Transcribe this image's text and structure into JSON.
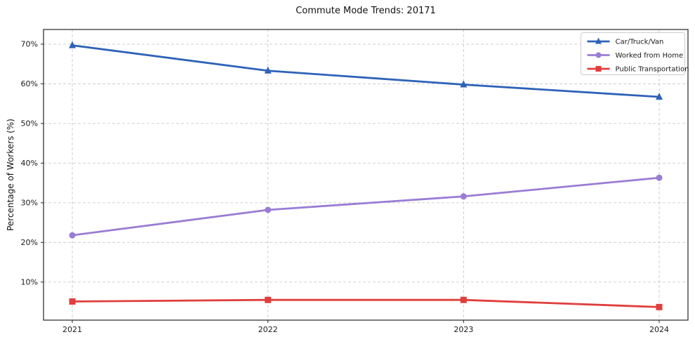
{
  "chart_data": {
    "type": "line",
    "title": "Commute Mode Trends: 20171",
    "xlabel": "",
    "ylabel": "Percentage of Workers (%)",
    "categories": [
      "2021",
      "2022",
      "2023",
      "2024"
    ],
    "series": [
      {
        "name": "Car/Truck/Van",
        "color": "#2e62b8",
        "marker": "triangle",
        "values": [
          69.7,
          63.3,
          59.8,
          56.7
        ]
      },
      {
        "name": "Worked from Home",
        "color": "#9a7cd4",
        "marker": "circle",
        "values": [
          21.8,
          28.2,
          31.6,
          36.3
        ]
      },
      {
        "name": "Public Transportation",
        "color": "#e03e3e",
        "marker": "square",
        "values": [
          5.1,
          5.5,
          5.5,
          3.7
        ]
      }
    ],
    "ylim": [
      0.4,
      73.7
    ],
    "yticks": [
      10,
      20,
      30,
      40,
      50,
      60,
      70
    ],
    "ytick_suffix": "%",
    "grid": true,
    "legend_position": "upper right"
  },
  "colors": {
    "grid": "#c9c9c9",
    "spine": "#262626",
    "tick_text": "#1a1a1a",
    "legend_border": "#cccccc",
    "background": "#ffffff"
  }
}
